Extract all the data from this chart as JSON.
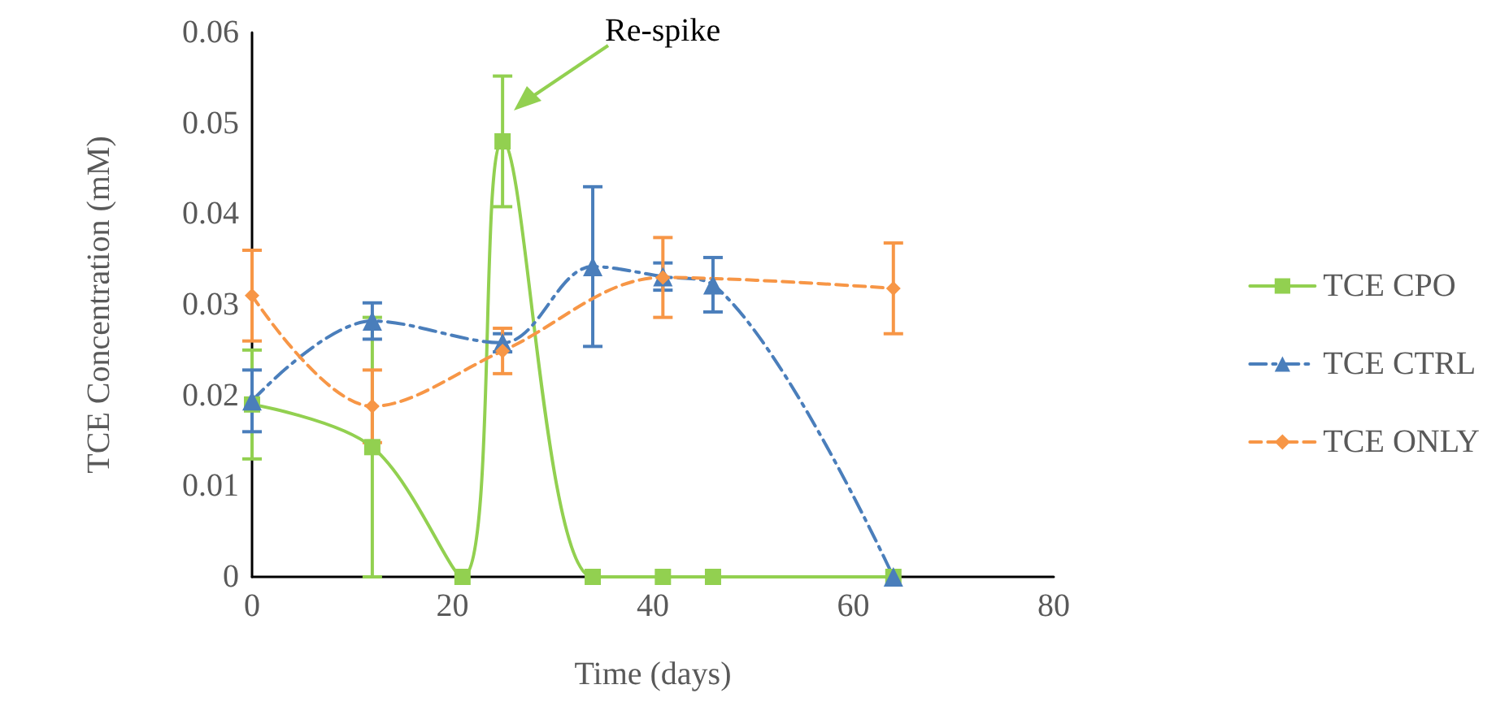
{
  "chart_data": {
    "type": "line",
    "xlabel": "Time (days)",
    "ylabel": "TCE Concentration (mM)",
    "xlim": [
      0,
      80
    ],
    "xticks": [
      0,
      20,
      40,
      60,
      80
    ],
    "ylim": [
      0,
      0.06
    ],
    "yticks": [
      0,
      0.01,
      0.02,
      0.03,
      0.04,
      0.05,
      0.06
    ],
    "grid": false,
    "legend": "right",
    "annotations": [
      "Re-spike"
    ],
    "series": [
      {
        "name": "TCE CPO",
        "color": "#92d050",
        "marker": "square",
        "line_style": "solid",
        "x": [
          0,
          12,
          21,
          25,
          34,
          41,
          46,
          64
        ],
        "values": [
          0.019,
          0.0143,
          0,
          0.048,
          0,
          0,
          0,
          0
        ],
        "errors": [
          0.006,
          0.0143,
          null,
          0.0072,
          null,
          null,
          null,
          null
        ]
      },
      {
        "name": "TCE CTRL",
        "color": "#4a7ebb",
        "marker": "triangle",
        "line_style": "dashdot",
        "x": [
          0,
          12,
          25,
          34,
          41,
          46,
          64
        ],
        "values": [
          0.0194,
          0.0282,
          0.0258,
          0.0342,
          0.0331,
          0.0322,
          0
        ],
        "errors": [
          0.0034,
          0.002,
          0.001,
          0.0088,
          0.0015,
          0.003,
          null
        ]
      },
      {
        "name": "TCE ONLY",
        "color": "#f79646",
        "marker": "diamond",
        "line_style": "dashed",
        "x": [
          0,
          12,
          25,
          41,
          64
        ],
        "values": [
          0.031,
          0.0188,
          0.0249,
          0.033,
          0.0318
        ],
        "errors": [
          0.005,
          0.004,
          0.0025,
          0.0044,
          0.005
        ]
      }
    ]
  }
}
